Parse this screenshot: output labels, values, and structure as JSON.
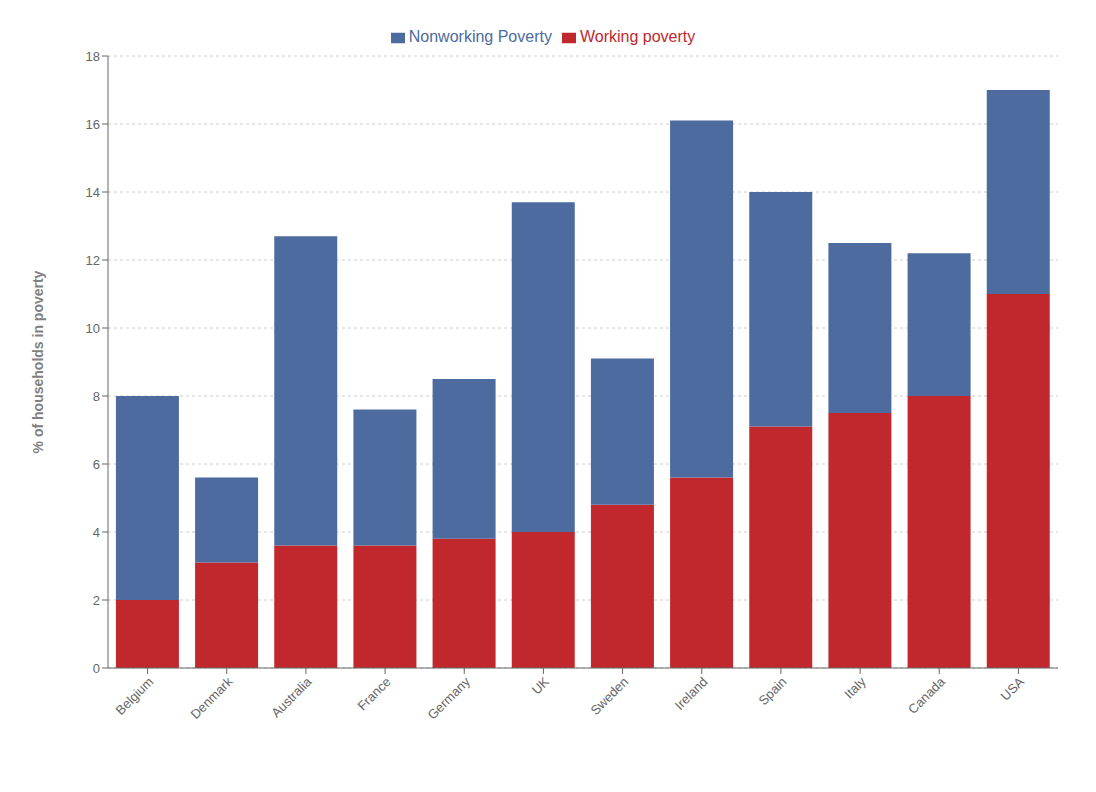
{
  "chart_data": {
    "type": "bar",
    "stacked": true,
    "categories": [
      "Belgium",
      "Denmark",
      "Australia",
      "France",
      "Germany",
      "UK",
      "Sweden",
      "Ireland",
      "Spain",
      "Italy",
      "Canada",
      "USA"
    ],
    "series": [
      {
        "name": "Working poverty",
        "color": "#c0282d",
        "values": [
          2.0,
          3.1,
          3.6,
          3.6,
          3.8,
          4.0,
          4.8,
          5.6,
          7.1,
          7.5,
          8.0,
          11.0
        ]
      },
      {
        "name": "Nonworking Poverty",
        "color": "#4d6b9e",
        "values": [
          6.0,
          2.5,
          9.1,
          4.0,
          4.7,
          9.7,
          4.3,
          10.5,
          6.9,
          5.0,
          4.2,
          6.0
        ]
      }
    ],
    "ylabel": "% of households in poverty",
    "ylim": [
      0,
      18
    ],
    "yticks": [
      0,
      2,
      4,
      6,
      8,
      10,
      12,
      14,
      16,
      18
    ],
    "grid": true,
    "legend": "top"
  }
}
